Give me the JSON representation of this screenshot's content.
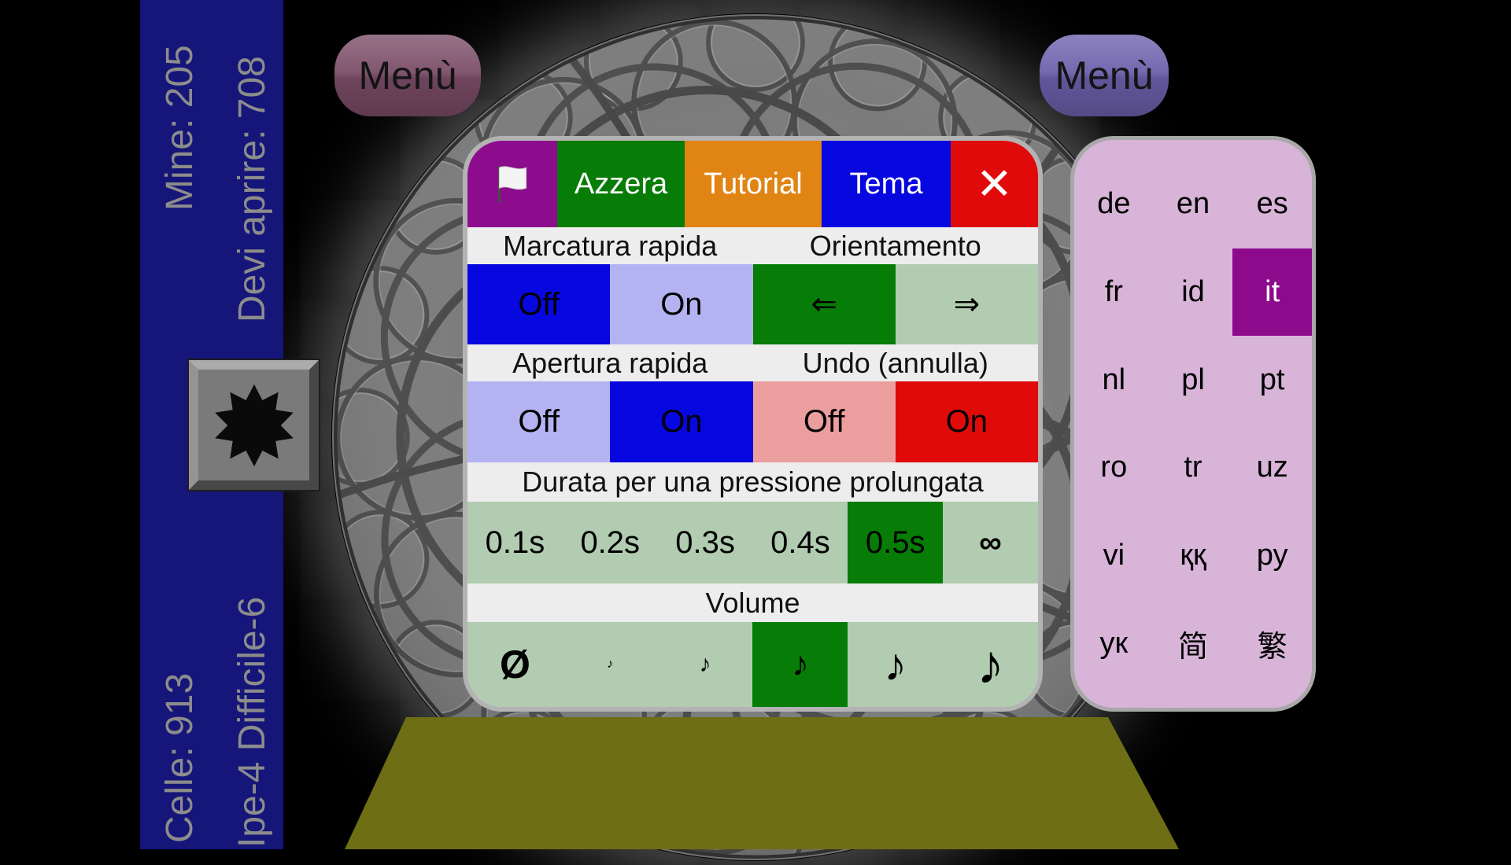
{
  "colors": {
    "accent_blue": "#0707e0",
    "accent_green": "#077c07",
    "accent_red": "#e00a0a",
    "accent_orange": "#e08414",
    "accent_purple": "#8d0c8d",
    "lavender": "#b3b3f2",
    "sage_green": "#b1ccb1",
    "pink": "#eb9e9e",
    "language_panel_pink": "#d8b4d8",
    "sidebar_navy": "#15157a",
    "board_olive": "#6e6e15"
  },
  "menus": {
    "left_label": "Menù",
    "right_label": "Menù"
  },
  "sidebar": {
    "mines": "Mine: 205",
    "must_open": "Devi aprire: 708",
    "cells": "Celle: 913",
    "difficulty": "Ipe-4 Difficile-6"
  },
  "dialog": {
    "toolbar": {
      "flag_icon": "white-flag",
      "reset_label": "Azzera",
      "tutorial_label": "Tutorial",
      "theme_label": "Tema",
      "close_glyph": "✕"
    },
    "quick_mark": {
      "title": "Marcatura rapida",
      "off": "Off",
      "on": "On",
      "selected": "Off"
    },
    "orientation": {
      "title": "Orientamento",
      "left_arrow": "⇐",
      "right_arrow": "⇒",
      "selected": "left"
    },
    "quick_open": {
      "title": "Apertura rapida",
      "off": "Off",
      "on": "On",
      "selected": "On"
    },
    "undo": {
      "title": "Undo (annulla)",
      "off": "Off",
      "on": "On",
      "selected": "On"
    },
    "long_press": {
      "title": "Durata per una pressione prolungata",
      "options": [
        "0.1s",
        "0.2s",
        "0.3s",
        "0.4s",
        "0.5s",
        "∞"
      ],
      "selected": "0.5s"
    },
    "volume": {
      "title": "Volume",
      "glyphs": [
        "Ø",
        "♪",
        "♪",
        "♪",
        "♪",
        "♪"
      ],
      "selected_index": 3
    }
  },
  "languages": {
    "items": [
      "de",
      "en",
      "es",
      "fr",
      "id",
      "it",
      "nl",
      "pl",
      "pt",
      "ro",
      "tr",
      "uz",
      "vi",
      "ққ",
      "ру",
      "ук",
      "简",
      "繁"
    ],
    "selected": "it"
  }
}
